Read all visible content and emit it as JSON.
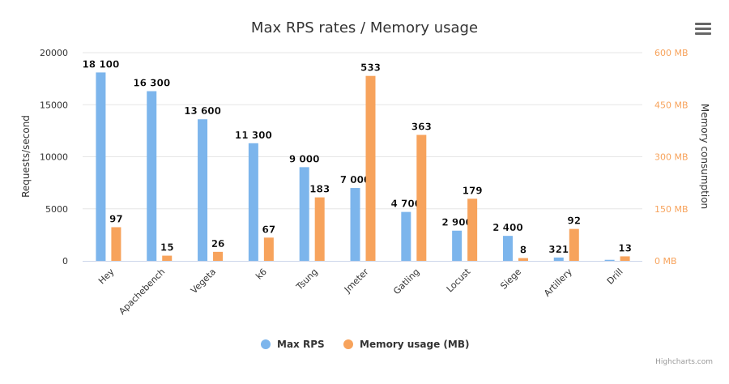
{
  "chart_data": {
    "type": "bar",
    "title": "Max RPS rates / Memory usage",
    "categories": [
      "Hey",
      "Apachebench",
      "Vegeta",
      "k6",
      "Tsung",
      "Jmeter",
      "Gatling",
      "Locust",
      "Siege",
      "Artillery",
      "Drill"
    ],
    "series": [
      {
        "name": "Max RPS",
        "axis": "left",
        "color": "#7cb5ec",
        "values": [
          18100,
          16300,
          13600,
          11300,
          9000,
          7000,
          4700,
          2900,
          2400,
          321,
          100
        ],
        "labels": [
          "18 100",
          "16 300",
          "13 600",
          "11 300",
          "9 000",
          "7 000",
          "4 700",
          "2 900",
          "2 400",
          "321",
          null
        ]
      },
      {
        "name": "Memory usage (MB)",
        "axis": "right",
        "color": "#f7a35c",
        "values": [
          97,
          15,
          26,
          67,
          183,
          533,
          363,
          179,
          8,
          92,
          13
        ],
        "labels": [
          "97",
          "15",
          "26",
          "67",
          "183",
          "533",
          "363",
          "179",
          "8",
          "92",
          "13"
        ]
      }
    ],
    "yaxis_left": {
      "label": "Requests/second",
      "range": [
        0,
        20000
      ],
      "ticks": [
        "0",
        "5000",
        "10000",
        "15000",
        "20000"
      ]
    },
    "yaxis_right": {
      "label": "Memory consumption",
      "range": [
        0,
        600
      ],
      "ticks": [
        "0 MB",
        "150 MB",
        "300 MB",
        "450 MB",
        "600 MB"
      ],
      "color": "#f7a35c"
    },
    "grid": true,
    "legend": "bottom"
  },
  "credits": "Highcharts.com",
  "menu_icon": "hamburger-icon"
}
